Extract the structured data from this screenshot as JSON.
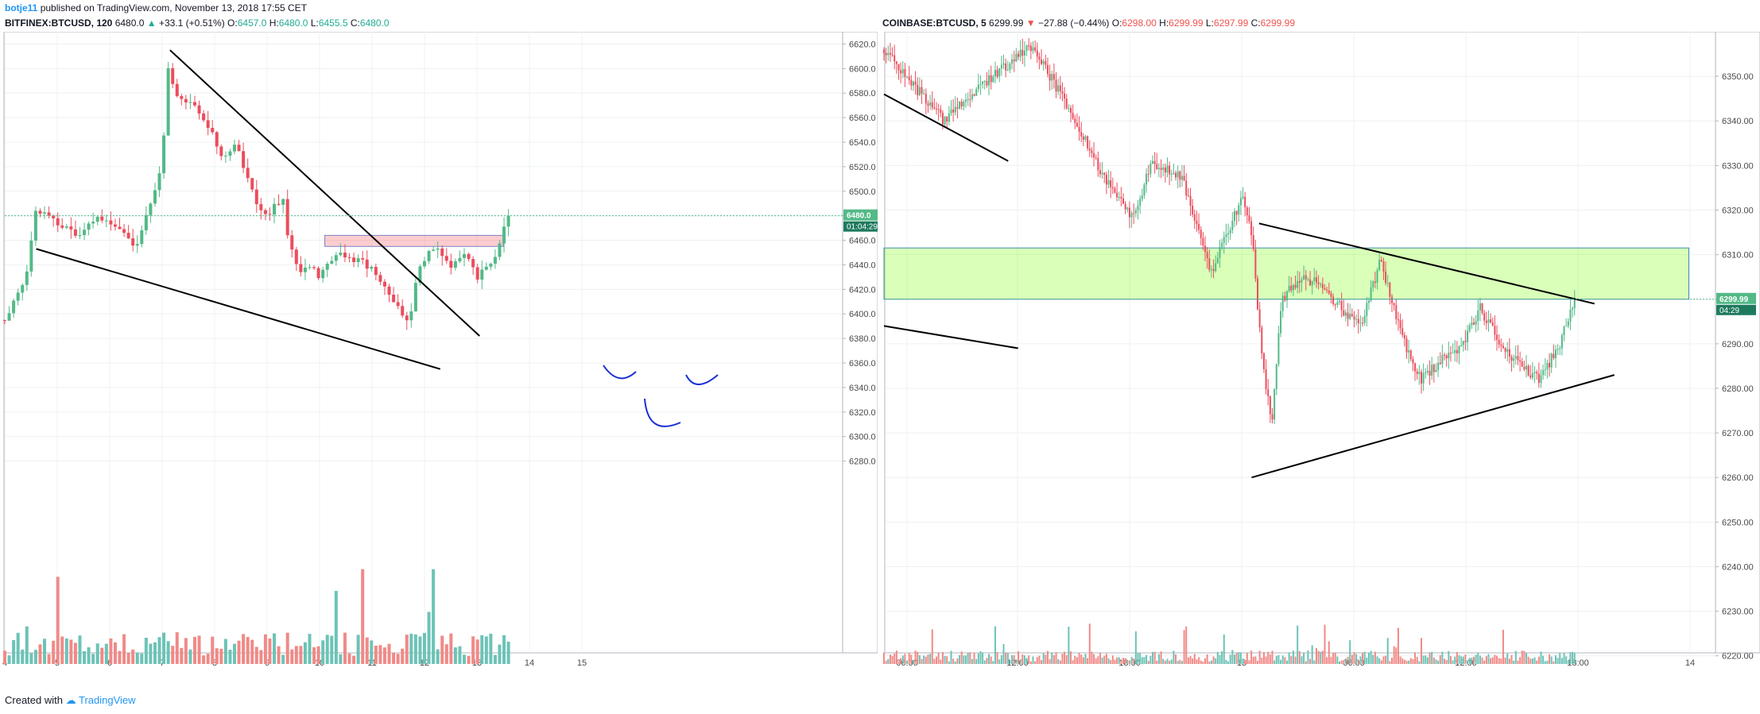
{
  "header": {
    "username": "botje11",
    "published": "published on TradingView.com, November 13, 2018 17:55 CET"
  },
  "footer": {
    "created_with": "Created with",
    "brand": "TradingView"
  },
  "left_header": {
    "symbol": "BITFINEX:BTCUSD, 120",
    "last": "6480.0",
    "change": "+33.1 (+0.51%)",
    "o": "6457.0",
    "h": "6480.0",
    "l": "6455.5",
    "c": "6480.0"
  },
  "right_header": {
    "symbol": "COINBASE:BTCUSD, 5",
    "last": "6299.99",
    "change": "−27.88 (−0.44%)",
    "o": "6298.00",
    "h": "6299.99",
    "l": "6297.99",
    "c": "6299.99"
  },
  "colors": {
    "up": "#53b987",
    "down": "#eb4d5c",
    "vol_up": "#6cc3b6",
    "vol_down": "#f08a87",
    "grid": "#eef0f3"
  },
  "chart_data": [
    {
      "type": "candlestick",
      "ylim": [
        6270,
        6630
      ],
      "y_ticks": [
        "6620.0",
        "6600.0",
        "6580.0",
        "6560.0",
        "6540.0",
        "6520.0",
        "6500.0",
        "6480.0",
        "6460.0",
        "6440.0",
        "6420.0",
        "6400.0",
        "6380.0",
        "6360.0",
        "6340.0",
        "6320.0",
        "6300.0",
        "6280.0"
      ],
      "x_ticks": [
        "4",
        "5",
        "6",
        "7",
        "8",
        "9",
        "10",
        "11",
        "12",
        "13",
        "14",
        "15"
      ],
      "price_label": "6480.0",
      "countdown": "01:04:29",
      "last_price": 6480.0,
      "close_path": [
        [
          4.0,
          6395
        ],
        [
          4.4,
          6430
        ],
        [
          4.6,
          6485
        ],
        [
          5.0,
          6475
        ],
        [
          5.4,
          6465
        ],
        [
          5.8,
          6480
        ],
        [
          6.2,
          6470
        ],
        [
          6.5,
          6455
        ],
        [
          6.8,
          6490
        ],
        [
          7.0,
          6520
        ],
        [
          7.1,
          6605
        ],
        [
          7.3,
          6575
        ],
        [
          7.6,
          6570
        ],
        [
          7.8,
          6560
        ],
        [
          8.0,
          6545
        ],
        [
          8.1,
          6525
        ],
        [
          8.4,
          6540
        ],
        [
          8.6,
          6515
        ],
        [
          8.8,
          6490
        ],
        [
          9.0,
          6480
        ],
        [
          9.3,
          6495
        ],
        [
          9.4,
          6460
        ],
        [
          9.6,
          6435
        ],
        [
          9.8,
          6440
        ],
        [
          10.0,
          6430
        ],
        [
          10.3,
          6450
        ],
        [
          10.6,
          6445
        ],
        [
          10.9,
          6440
        ],
        [
          11.2,
          6425
        ],
        [
          11.5,
          6405
        ],
        [
          11.7,
          6390
        ],
        [
          11.9,
          6440
        ],
        [
          12.2,
          6455
        ],
        [
          12.5,
          6440
        ],
        [
          12.8,
          6450
        ],
        [
          13.0,
          6430
        ],
        [
          13.3,
          6440
        ],
        [
          13.6,
          6480
        ]
      ],
      "annotations": {
        "resistance_zone": [
          6455,
          6464
        ],
        "descending_trendline": [
          [
            7.15,
            6615
          ],
          [
            13.05,
            6382
          ]
        ],
        "lower_trendline": [
          [
            4.6,
            6453
          ],
          [
            12.3,
            6355
          ]
        ]
      }
    },
    {
      "type": "candlestick",
      "ylim": [
        6213,
        6360
      ],
      "y_ticks": [
        "6350.00",
        "6340.00",
        "6330.00",
        "6320.00",
        "6310.00",
        "6300.00",
        "6290.00",
        "6280.00",
        "6270.00",
        "6260.00",
        "6250.00",
        "6240.00",
        "6230.00",
        "6220.00"
      ],
      "x_ticks": [
        "06:00",
        "12:00",
        "18:00",
        "13",
        "06:00",
        "12:00",
        "18:00",
        "14"
      ],
      "price_label": "6299.99",
      "countdown": "04:29",
      "last_price": 6299.99,
      "close_path": [
        [
          0.0,
          6356
        ],
        [
          0.12,
          6340
        ],
        [
          0.22,
          6350
        ],
        [
          0.3,
          6357
        ],
        [
          0.36,
          6345
        ],
        [
          0.44,
          6328
        ],
        [
          0.5,
          6318
        ],
        [
          0.54,
          6331
        ],
        [
          0.6,
          6327
        ],
        [
          0.66,
          6306
        ],
        [
          0.72,
          6323
        ],
        [
          0.74,
          6315
        ],
        [
          0.76,
          6288
        ],
        [
          0.78,
          6272
        ],
        [
          0.8,
          6300
        ],
        [
          0.84,
          6305
        ],
        [
          0.88,
          6303
        ],
        [
          0.92,
          6298
        ],
        [
          0.96,
          6294
        ],
        [
          1.0,
          6309
        ],
        [
          1.04,
          6292
        ],
        [
          1.08,
          6282
        ],
        [
          1.12,
          6286
        ],
        [
          1.16,
          6289
        ],
        [
          1.2,
          6298
        ],
        [
          1.24,
          6290
        ],
        [
          1.28,
          6285
        ],
        [
          1.32,
          6282
        ],
        [
          1.36,
          6290
        ],
        [
          1.39,
          6300
        ]
      ],
      "annotations": {
        "support_zone": [
          6300,
          6311.5
        ],
        "descending_trendline": [
          [
            0.755,
            6317
          ],
          [
            1.43,
            6299
          ]
        ],
        "ascending_trendline": [
          [
            0.74,
            6260
          ],
          [
            1.47,
            6283
          ]
        ],
        "upper_left_line": [
          [
            0.0,
            6346
          ],
          [
            0.25,
            6331
          ]
        ],
        "mid_left_line": [
          [
            0.0,
            6294
          ],
          [
            0.27,
            6289
          ]
        ]
      }
    }
  ]
}
